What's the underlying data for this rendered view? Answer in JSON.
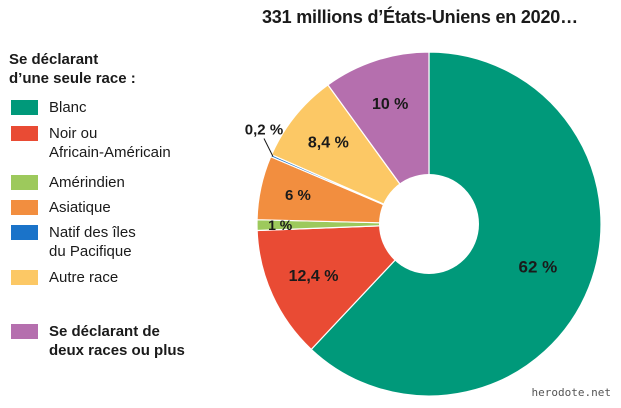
{
  "title": "331 millions d’États-Uniens en 2020…",
  "legend_heading": [
    "Se déclarant",
    "d’une seule race :"
  ],
  "watermark": "herodote.net",
  "chart_data": {
    "type": "pie",
    "donut": true,
    "unit": "%",
    "slices": [
      {
        "key": "blanc",
        "label": [
          "Blanc"
        ],
        "value": 62,
        "value_label": "62 %",
        "color": "#00997a"
      },
      {
        "key": "noir",
        "label": [
          "Noir ou",
          "Africain-Américain"
        ],
        "value": 12.4,
        "value_label": "12,4 %",
        "color": "#e94b34"
      },
      {
        "key": "amerindien",
        "label": [
          "Amérindien"
        ],
        "value": 1,
        "value_label": "1 %",
        "color": "#9dc95c"
      },
      {
        "key": "asiatique",
        "label": [
          "Asiatique"
        ],
        "value": 6,
        "value_label": "6 %",
        "color": "#f28e3f"
      },
      {
        "key": "pacifique",
        "label": [
          "Natif des îles",
          "du Pacifique"
        ],
        "value": 0.2,
        "value_label": "0,2 %",
        "color": "#1a73c9"
      },
      {
        "key": "autre",
        "label": [
          "Autre race"
        ],
        "value": 8.4,
        "value_label": "8,4 %",
        "color": "#fcc865"
      },
      {
        "key": "deux",
        "label": [
          "Se déclarant de",
          "deux races ou plus"
        ],
        "value": 10,
        "value_label": "10 %",
        "color": "#b56fae",
        "bold": true
      }
    ]
  }
}
